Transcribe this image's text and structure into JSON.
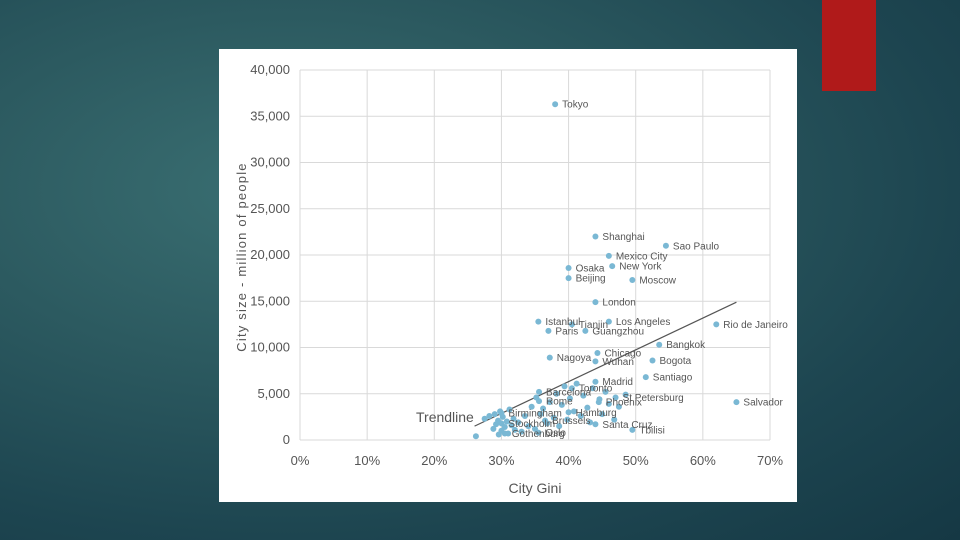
{
  "slide": {
    "accent_color": "#b01a1a"
  },
  "chart_data": {
    "type": "scatter",
    "xlabel": "City Gini",
    "ylabel": "City size - million of people",
    "xlim": [
      0,
      0.7
    ],
    "ylim": [
      0,
      40000
    ],
    "x_ticks": [
      "0%",
      "10%",
      "20%",
      "30%",
      "40%",
      "50%",
      "60%",
      "70%"
    ],
    "y_ticks": [
      "0",
      "5,000",
      "10,000",
      "15,000",
      "20,000",
      "25,000",
      "30,000",
      "35,000",
      "40,000"
    ],
    "grid": true,
    "point_color": "#7ab8d4",
    "trendline": {
      "label": "Trendline",
      "start": [
        0.26,
        1500
      ],
      "end": [
        0.65,
        14900
      ]
    },
    "labeled_points": [
      {
        "name": "Tokyo",
        "x": 0.38,
        "y": 36300
      },
      {
        "name": "Shanghai",
        "x": 0.44,
        "y": 22000
      },
      {
        "name": "Sao Paulo",
        "x": 0.545,
        "y": 21000
      },
      {
        "name": "Mexico City",
        "x": 0.46,
        "y": 19900
      },
      {
        "name": "Osaka",
        "x": 0.4,
        "y": 18600
      },
      {
        "name": "New York",
        "x": 0.465,
        "y": 18800
      },
      {
        "name": "Beijing",
        "x": 0.4,
        "y": 17500
      },
      {
        "name": "Moscow",
        "x": 0.495,
        "y": 17300
      },
      {
        "name": "London",
        "x": 0.44,
        "y": 14900
      },
      {
        "name": "Istanbul",
        "x": 0.355,
        "y": 12800
      },
      {
        "name": "Tianjin",
        "x": 0.405,
        "y": 12500
      },
      {
        "name": "Los Angeles",
        "x": 0.46,
        "y": 12800
      },
      {
        "name": "Rio de Janeiro",
        "x": 0.62,
        "y": 12500
      },
      {
        "name": "Paris",
        "x": 0.37,
        "y": 11800
      },
      {
        "name": "Guangzhou",
        "x": 0.425,
        "y": 11800
      },
      {
        "name": "Bangkok",
        "x": 0.535,
        "y": 10300
      },
      {
        "name": "Nagoya",
        "x": 0.372,
        "y": 8900
      },
      {
        "name": "Chicago",
        "x": 0.443,
        "y": 9400
      },
      {
        "name": "Wuhan",
        "x": 0.44,
        "y": 8500
      },
      {
        "name": "Bogota",
        "x": 0.525,
        "y": 8600
      },
      {
        "name": "Santiago",
        "x": 0.515,
        "y": 6800
      },
      {
        "name": "Madrid",
        "x": 0.44,
        "y": 6300
      },
      {
        "name": "Toronto",
        "x": 0.405,
        "y": 5600
      },
      {
        "name": "Barcelona",
        "x": 0.356,
        "y": 5200
      },
      {
        "name": "St Petersburg",
        "x": 0.47,
        "y": 4600
      },
      {
        "name": "Rome",
        "x": 0.356,
        "y": 4200
      },
      {
        "name": "Phoenix",
        "x": 0.445,
        "y": 4100
      },
      {
        "name": "Salvador",
        "x": 0.65,
        "y": 4100
      },
      {
        "name": "Birmingham",
        "x": 0.3,
        "y": 2900
      },
      {
        "name": "Hamburg",
        "x": 0.4,
        "y": 3000
      },
      {
        "name": "Stockholm",
        "x": 0.3,
        "y": 1800
      },
      {
        "name": "Brussels",
        "x": 0.365,
        "y": 2100
      },
      {
        "name": "Santa Cruz",
        "x": 0.44,
        "y": 1700
      },
      {
        "name": "Tbilisi",
        "x": 0.495,
        "y": 1100
      },
      {
        "name": "Gothenburg",
        "x": 0.305,
        "y": 700
      },
      {
        "name": "Oslo",
        "x": 0.355,
        "y": 800
      }
    ],
    "unlabeled_points": [
      {
        "x": 0.262,
        "y": 400
      },
      {
        "x": 0.275,
        "y": 2300
      },
      {
        "x": 0.282,
        "y": 2600
      },
      {
        "x": 0.288,
        "y": 1200
      },
      {
        "x": 0.29,
        "y": 2800
      },
      {
        "x": 0.292,
        "y": 1700
      },
      {
        "x": 0.295,
        "y": 2100
      },
      {
        "x": 0.296,
        "y": 600
      },
      {
        "x": 0.298,
        "y": 3100
      },
      {
        "x": 0.3,
        "y": 1000
      },
      {
        "x": 0.302,
        "y": 2500
      },
      {
        "x": 0.305,
        "y": 1400
      },
      {
        "x": 0.308,
        "y": 2000
      },
      {
        "x": 0.31,
        "y": 700
      },
      {
        "x": 0.312,
        "y": 3300
      },
      {
        "x": 0.315,
        "y": 1600
      },
      {
        "x": 0.318,
        "y": 2300
      },
      {
        "x": 0.32,
        "y": 1100
      },
      {
        "x": 0.325,
        "y": 1900
      },
      {
        "x": 0.33,
        "y": 900
      },
      {
        "x": 0.335,
        "y": 2600
      },
      {
        "x": 0.34,
        "y": 1500
      },
      {
        "x": 0.345,
        "y": 3600
      },
      {
        "x": 0.35,
        "y": 1200
      },
      {
        "x": 0.352,
        "y": 4600
      },
      {
        "x": 0.358,
        "y": 2800
      },
      {
        "x": 0.362,
        "y": 3400
      },
      {
        "x": 0.368,
        "y": 1800
      },
      {
        "x": 0.372,
        "y": 4100
      },
      {
        "x": 0.378,
        "y": 2400
      },
      {
        "x": 0.382,
        "y": 5000
      },
      {
        "x": 0.386,
        "y": 1500
      },
      {
        "x": 0.39,
        "y": 3800
      },
      {
        "x": 0.394,
        "y": 5800
      },
      {
        "x": 0.398,
        "y": 2200
      },
      {
        "x": 0.402,
        "y": 4500
      },
      {
        "x": 0.408,
        "y": 3100
      },
      {
        "x": 0.412,
        "y": 6100
      },
      {
        "x": 0.418,
        "y": 2600
      },
      {
        "x": 0.422,
        "y": 4800
      },
      {
        "x": 0.428,
        "y": 3500
      },
      {
        "x": 0.432,
        "y": 1900
      },
      {
        "x": 0.436,
        "y": 5600
      },
      {
        "x": 0.446,
        "y": 4400
      },
      {
        "x": 0.45,
        "y": 2800
      },
      {
        "x": 0.455,
        "y": 5200
      },
      {
        "x": 0.46,
        "y": 3900
      },
      {
        "x": 0.468,
        "y": 2200
      },
      {
        "x": 0.475,
        "y": 3600
      },
      {
        "x": 0.485,
        "y": 4900
      }
    ]
  }
}
